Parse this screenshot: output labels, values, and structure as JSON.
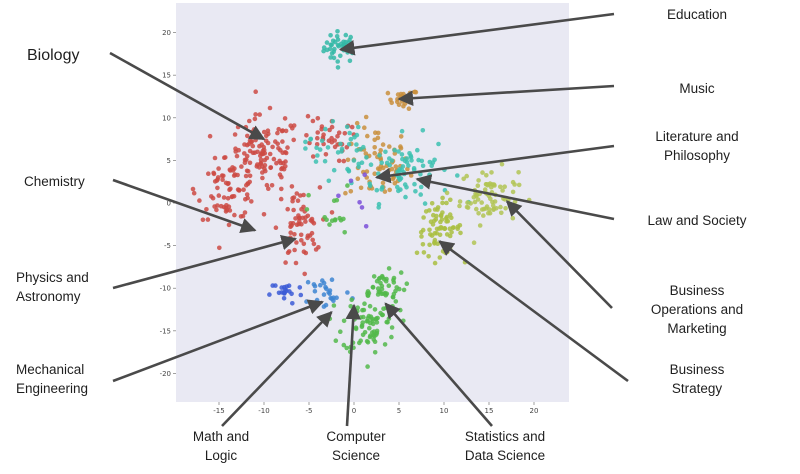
{
  "chart_data": {
    "type": "scatter",
    "title": "",
    "xlabel": "",
    "ylabel": "",
    "xlim": [
      -19,
      23
    ],
    "ylim": [
      -23,
      23
    ],
    "xticks": [
      -15,
      -10,
      -5,
      0,
      5,
      10,
      15,
      20
    ],
    "yticks": [
      20,
      15,
      10,
      5,
      0,
      -5,
      -10,
      -15,
      -20
    ],
    "grid": false,
    "clusters": [
      {
        "name": "Education",
        "color": "#33b8a6",
        "center": [
          -1.5,
          18.3
        ],
        "spread": [
          1.3,
          1.3
        ],
        "count": 40
      },
      {
        "name": "Music",
        "color": "#c98f3c",
        "center": [
          5.5,
          12.2
        ],
        "spread": [
          1.2,
          0.8
        ],
        "count": 22
      },
      {
        "name": "Literature and Philosophy",
        "color": "#c98f3c",
        "center": [
          2.5,
          4.5
        ],
        "spread": [
          2.6,
          3.2
        ],
        "count": 70
      },
      {
        "name": "Law and Society",
        "color": "#3cc1b0",
        "center": [
          5.5,
          4.0
        ],
        "spread": [
          3.8,
          2.8
        ],
        "count": 75
      },
      {
        "name": "Business Operations and Marketing",
        "color": "#b2c454",
        "center": [
          15.0,
          0.8
        ],
        "spread": [
          2.3,
          2.3
        ],
        "count": 75
      },
      {
        "name": "Business Strategy",
        "color": "#a9be3f",
        "center": [
          9.5,
          -3.0
        ],
        "spread": [
          1.8,
          2.2
        ],
        "count": 70
      },
      {
        "name": "Biology",
        "color": "#cc4a43",
        "center": [
          -10.0,
          5.5
        ],
        "spread": [
          3.0,
          3.3
        ],
        "count": 120
      },
      {
        "name": "Chemistry",
        "color": "#cc4a43",
        "center": [
          -14.0,
          1.5
        ],
        "spread": [
          2.4,
          2.4
        ],
        "count": 65
      },
      {
        "name": "Physics and Astronomy",
        "color": "#cc4a43",
        "center": [
          -6.2,
          -3.0
        ],
        "spread": [
          1.7,
          3.4
        ],
        "count": 60
      },
      {
        "name": "Mechanical Engineering",
        "color": "#3b5ad6",
        "center": [
          -7.5,
          -10.5
        ],
        "spread": [
          1.3,
          1.0
        ],
        "count": 20
      },
      {
        "name": "Math and Logic",
        "color": "#3d85d1",
        "center": [
          -3.0,
          -10.5
        ],
        "spread": [
          1.9,
          1.6
        ],
        "count": 25
      },
      {
        "name": "Computer Science",
        "color": "#52b84a",
        "center": [
          1.8,
          -14.0
        ],
        "spread": [
          2.2,
          2.6
        ],
        "count": 80
      },
      {
        "name": "Statistics and Data Science",
        "color": "#52b84a",
        "center": [
          3.0,
          -9.8
        ],
        "spread": [
          2.0,
          1.3
        ],
        "count": 40
      },
      {
        "name": "",
        "color": "#cc4a43",
        "center": [
          -3.0,
          7.5
        ],
        "spread": [
          1.8,
          2.0
        ],
        "count": 35
      },
      {
        "name": "",
        "color": "#3cc1b0",
        "center": [
          -2.0,
          6.5
        ],
        "spread": [
          2.5,
          2.5
        ],
        "count": 35
      },
      {
        "name": "",
        "color": "#52b84a",
        "center": [
          -2.5,
          -1.5
        ],
        "spread": [
          1.8,
          2.5
        ],
        "count": 15
      },
      {
        "name": "",
        "color": "#7a4fd8",
        "center": [
          0.0,
          0.0
        ],
        "spread": [
          3.5,
          4.5
        ],
        "count": 6
      }
    ],
    "annotations": [
      {
        "text": [
          "Education"
        ],
        "target": [
          -1.5,
          18.0
        ]
      },
      {
        "text": [
          "Music"
        ],
        "target": [
          5.0,
          12.2
        ]
      },
      {
        "text": [
          "Literature and",
          "Philosophy"
        ],
        "target": [
          2.5,
          3.0
        ]
      },
      {
        "text": [
          "Law and Society"
        ],
        "target": [
          7.0,
          2.8
        ]
      },
      {
        "text": [
          "Business",
          "Operations and",
          "Marketing"
        ],
        "target": [
          17.0,
          0.2
        ]
      },
      {
        "text": [
          "Business",
          "Strategy"
        ],
        "target": [
          9.5,
          -4.5
        ]
      },
      {
        "text": [
          "Biology"
        ],
        "target": [
          -10.0,
          7.5
        ]
      },
      {
        "text": [
          "Chemistry"
        ],
        "target": [
          -11.0,
          -3.2
        ]
      },
      {
        "text": [
          "Physics and",
          "Astronomy"
        ],
        "target": [
          -6.5,
          -4.2
        ]
      },
      {
        "text": [
          "Mechanical",
          "Engineering"
        ],
        "target": [
          -3.5,
          -11.6
        ]
      },
      {
        "text": [
          "Math and",
          "Logic"
        ],
        "target": [
          -2.5,
          -12.8
        ]
      },
      {
        "text": [
          "Computer",
          "Science"
        ],
        "target": [
          0.0,
          -12.0
        ]
      },
      {
        "text": [
          "Statistics and",
          "Data Science"
        ],
        "target": [
          3.5,
          -11.8
        ]
      }
    ]
  }
}
